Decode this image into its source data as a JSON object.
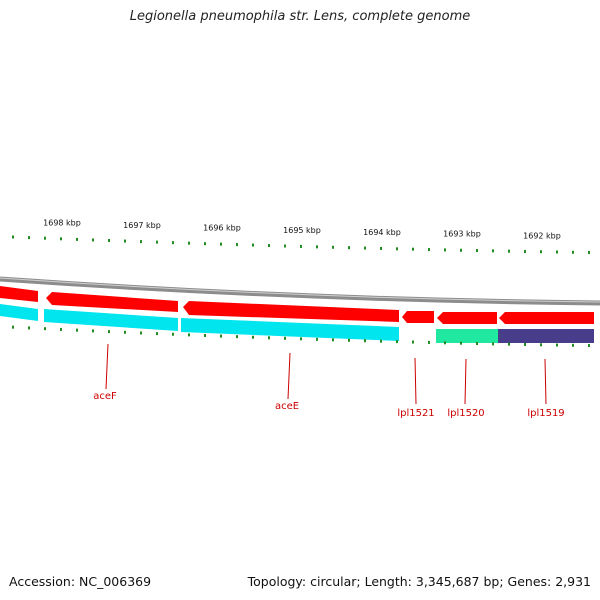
{
  "title": "Legionella pneumophila str. Lens, complete genome",
  "footer": {
    "accession": "Accession: NC_006369",
    "summary": "Topology: circular; Length: 3,345,687 bp; Genes: 2,931"
  },
  "colors": {
    "backbone": "#8c8c8c",
    "cds_forward": "#ff0000",
    "cds_reverse": "#00e5ee",
    "gene_teal": "#20e8a0",
    "gene_navy": "#483d8b",
    "tick": "#228b22",
    "label": "#cc0000"
  },
  "ruler": [
    {
      "label": "1698 kbp",
      "pos_kbp": 1698
    },
    {
      "label": "1697 kbp",
      "pos_kbp": 1697
    },
    {
      "label": "1696 kbp",
      "pos_kbp": 1696
    },
    {
      "label": "1695 kbp",
      "pos_kbp": 1695
    },
    {
      "label": "1694 kbp",
      "pos_kbp": 1694
    },
    {
      "label": "1693 kbp",
      "pos_kbp": 1693
    },
    {
      "label": "1692 kbp",
      "pos_kbp": 1692
    }
  ],
  "genes": [
    {
      "label": "aceF"
    },
    {
      "label": "aceE"
    },
    {
      "label": "lpl1521"
    },
    {
      "label": "lpl1520"
    },
    {
      "label": "lpl1519"
    }
  ]
}
